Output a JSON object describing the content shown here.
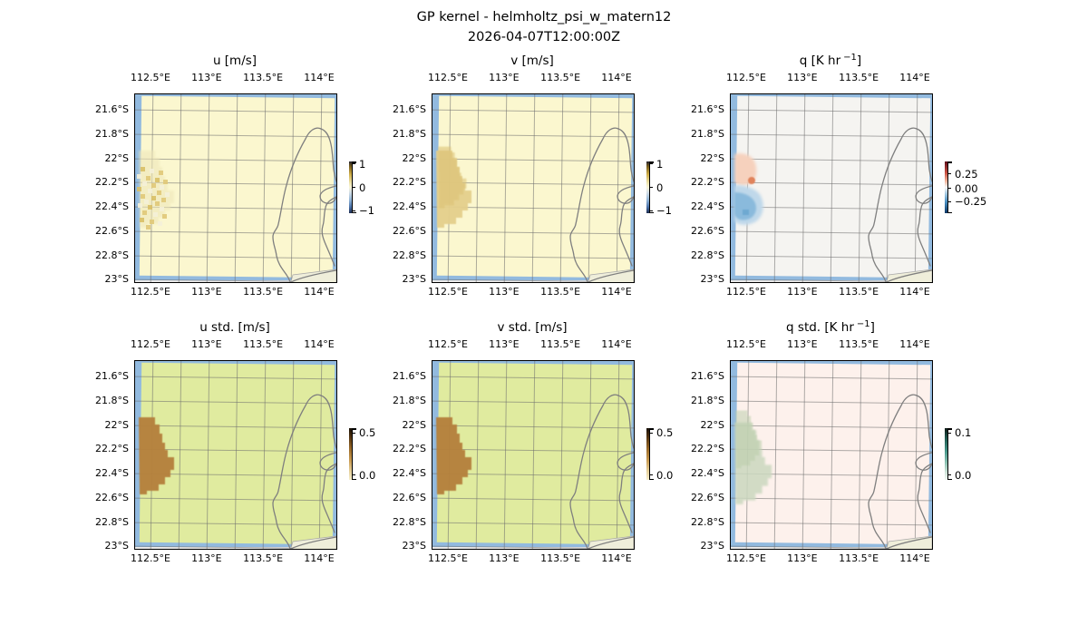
{
  "figure": {
    "title": "GP kernel - helmholtz_psi_w_matern12",
    "subtitle": "2026-04-07T12:00:00Z"
  },
  "axes": {
    "lon_ticks": [
      "112.5°E",
      "113°E",
      "113.5°E",
      "114°E"
    ],
    "lat_ticks": [
      "21.6°S",
      "21.8°S",
      "22°S",
      "22.2°S",
      "22.4°S",
      "22.6°S",
      "22.8°S",
      "23°S"
    ]
  },
  "panels": [
    {
      "field": "u",
      "title_pre": "u [m/s]",
      "title_sup": "",
      "title_post": "",
      "cbar": {
        "gradient": "uv",
        "labels": [
          "1",
          "0",
          "−1"
        ],
        "fractions": [
          0.05,
          0.5,
          0.95
        ]
      }
    },
    {
      "field": "v",
      "title_pre": "v [m/s]",
      "title_sup": "",
      "title_post": "",
      "cbar": {
        "gradient": "uv",
        "labels": [
          "1",
          "0",
          "−1"
        ],
        "fractions": [
          0.05,
          0.5,
          0.95
        ]
      }
    },
    {
      "field": "q",
      "title_pre": "q [K hr",
      "title_sup": "−1",
      "title_post": "]",
      "cbar": {
        "gradient": "q",
        "labels": [
          "0.25",
          "0.00",
          "−0.25"
        ],
        "fractions": [
          0.24,
          0.52,
          0.78
        ]
      }
    },
    {
      "field": "u_std",
      "title_pre": "u std. [m/s]",
      "title_sup": "",
      "title_post": "",
      "cbar": {
        "gradient": "std",
        "labels": [
          "0.5",
          "0.0"
        ],
        "fractions": [
          0.09,
          0.91
        ]
      }
    },
    {
      "field": "v_std",
      "title_pre": "v std. [m/s]",
      "title_sup": "",
      "title_post": "",
      "cbar": {
        "gradient": "std",
        "labels": [
          "0.5",
          "0.0"
        ],
        "fractions": [
          0.09,
          0.91
        ]
      }
    },
    {
      "field": "q_std",
      "title_pre": "q std. [K hr",
      "title_sup": "−1",
      "title_post": "]",
      "cbar": {
        "gradient": "qstd",
        "labels": [
          "0.1",
          "0.0"
        ],
        "fractions": [
          0.09,
          0.91
        ]
      }
    }
  ],
  "colors": {
    "ocean": "#92badf",
    "outside": "#e9e9e9",
    "land": "#efeeda",
    "coastline": "#7f7f7f",
    "gridline": "rgba(110,110,110,0.55)",
    "field_bg": {
      "u": "#fbf7cf",
      "v": "#fbf7cf",
      "q": "#f5f4f1",
      "u_std": "#e0eb9f",
      "v_std": "#e0eb9f",
      "q_std": "#fdf1ec"
    },
    "patches": {
      "std_blob": "#b5813d",
      "v_blob": "#e4cf8c",
      "v_blob_core": "#dcc276",
      "q_warm": "#f6d1bd",
      "q_warm_spot": "#e0835c",
      "q_cold": "#bfd8ea",
      "q_cold_core": "#8abadc",
      "q_std_blob": "#cbd8bf",
      "u_speckle_dark": "#e0c878",
      "u_speckle_darker": "#d8bf66",
      "u_speckle_light": "#f4efd8",
      "u_speckle_tint": "#eee6b8"
    },
    "cbar_gradients": {
      "uv": "linear-gradient(to bottom,#23232e 0%,#7c611c 10%,#cfae48 25%,#efe6b0 42%,#f8f4d8 50%,#d3dfe8 60%,#8fb3d6 75%,#4a72ab 88%,#1d2b4e 100%)",
      "q": "linear-gradient(to bottom,#5c0b1a 0%,#c94f40 22%,#f2b49a 38%,#f7f7f7 50%,#a6cbe3 62%,#4a90c2 78%,#0a3563 100%)",
      "std": "linear-gradient(to bottom,#160e04 0%,#553510 18%,#9a6a28 40%,#c89a50 62%,#e4cd96 82%,#f6efcd 100%)",
      "qstd": "linear-gradient(to bottom,#0e1a17 0%,#1f5a50 20%,#46978a 45%,#8ec4b4 68%,#cde3d8 85%,#f0f7f1 100%)"
    }
  },
  "chart_data": {
    "type": "heatmap",
    "layout": "2 rows x 3 columns of geographic map panels",
    "title": "GP kernel - helmholtz_psi_w_matern12",
    "subtitle": "2026-04-07T12:00:00Z",
    "map_extent": {
      "lon": [
        "112.35°E",
        "114.2°E"
      ],
      "lat": [
        "21.45°S",
        "23.05°S"
      ]
    },
    "lon_ticks": [
      "112.5°E",
      "113°E",
      "113.5°E",
      "114°E"
    ],
    "lat_ticks": [
      "21.6°S",
      "21.8°S",
      "22°S",
      "22.2°S",
      "22.4°S",
      "22.6°S",
      "22.8°S",
      "23°S"
    ],
    "graticule": "gridlines every 0.25° longitude and 0.2° latitude",
    "basemap": "west Australian coast near North West Cape / Exmouth Gulf drawn as gray coastline; blue ocean band around edge of slightly rotated data grid; cream land patch in bottom-right corner",
    "panels": [
      {
        "title": "u [m/s]",
        "colorbar_ticks": [
          1,
          0,
          -1
        ],
        "background_value": 0,
        "summary": "near-zero pale-yellow field with weak speckled anomalies (~±0.3 m/s) clustered near 112.4–112.8°E, 22.0–22.5°S"
      },
      {
        "title": "v [m/s]",
        "colorbar_ticks": [
          1,
          0,
          -1
        ],
        "background_value": 0,
        "summary": "near-zero pale-yellow field with a smooth weak positive (tan) patch (~+0.3 m/s) near 112.4–112.8°E, 22.0–22.5°S"
      },
      {
        "title": "q [K hr −1]",
        "colorbar_ticks": [
          0.25,
          0.0,
          -0.25
        ],
        "background_value": 0,
        "summary": "white field with a warm (red, ~+0.15) patch at 22.0–22.2°S and a cold (blue, ~−0.25) patch at 22.3–22.5°S along the western edge"
      },
      {
        "title": "u std. [m/s]",
        "colorbar_ticks": [
          0.5,
          0.0
        ],
        "summary": "uniform std ~0.1 (yellow-green) with a dark-brown blob of std ~0.45 over 112.4–112.9°E, 22.0–22.5°S"
      },
      {
        "title": "v std. [m/s]",
        "colorbar_ticks": [
          0.5,
          0.0
        ],
        "summary": "uniform std ~0.1 (yellow-green) with the same dark-brown high-std blob (~0.45) over 112.4–112.9°E, 22.0–22.5°S"
      },
      {
        "title": "q std. [K hr −1]",
        "colorbar_ticks": [
          0.1,
          0.0
        ],
        "summary": "uniform std ~0.09 (pale pink) with a slightly reduced-std pale-green blob over the observed region 112.4–112.9°E, 22.0–22.5°S"
      }
    ]
  }
}
